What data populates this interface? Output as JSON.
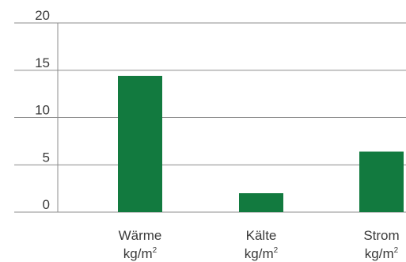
{
  "chart_data": {
    "type": "bar",
    "categories": [
      "Wärme",
      "Kälte",
      "Strom"
    ],
    "unit_base": "kg/m",
    "unit_sup": "2",
    "values": [
      14.4,
      2.0,
      6.4
    ],
    "ylim": [
      0,
      20
    ],
    "yticks": [
      0,
      5,
      10,
      15,
      20
    ],
    "grid": true,
    "colors": {
      "bar": "#127a3f",
      "grid": "#8c8c8c",
      "axis": "#8c8c8c",
      "text": "#3a3a3a"
    }
  }
}
